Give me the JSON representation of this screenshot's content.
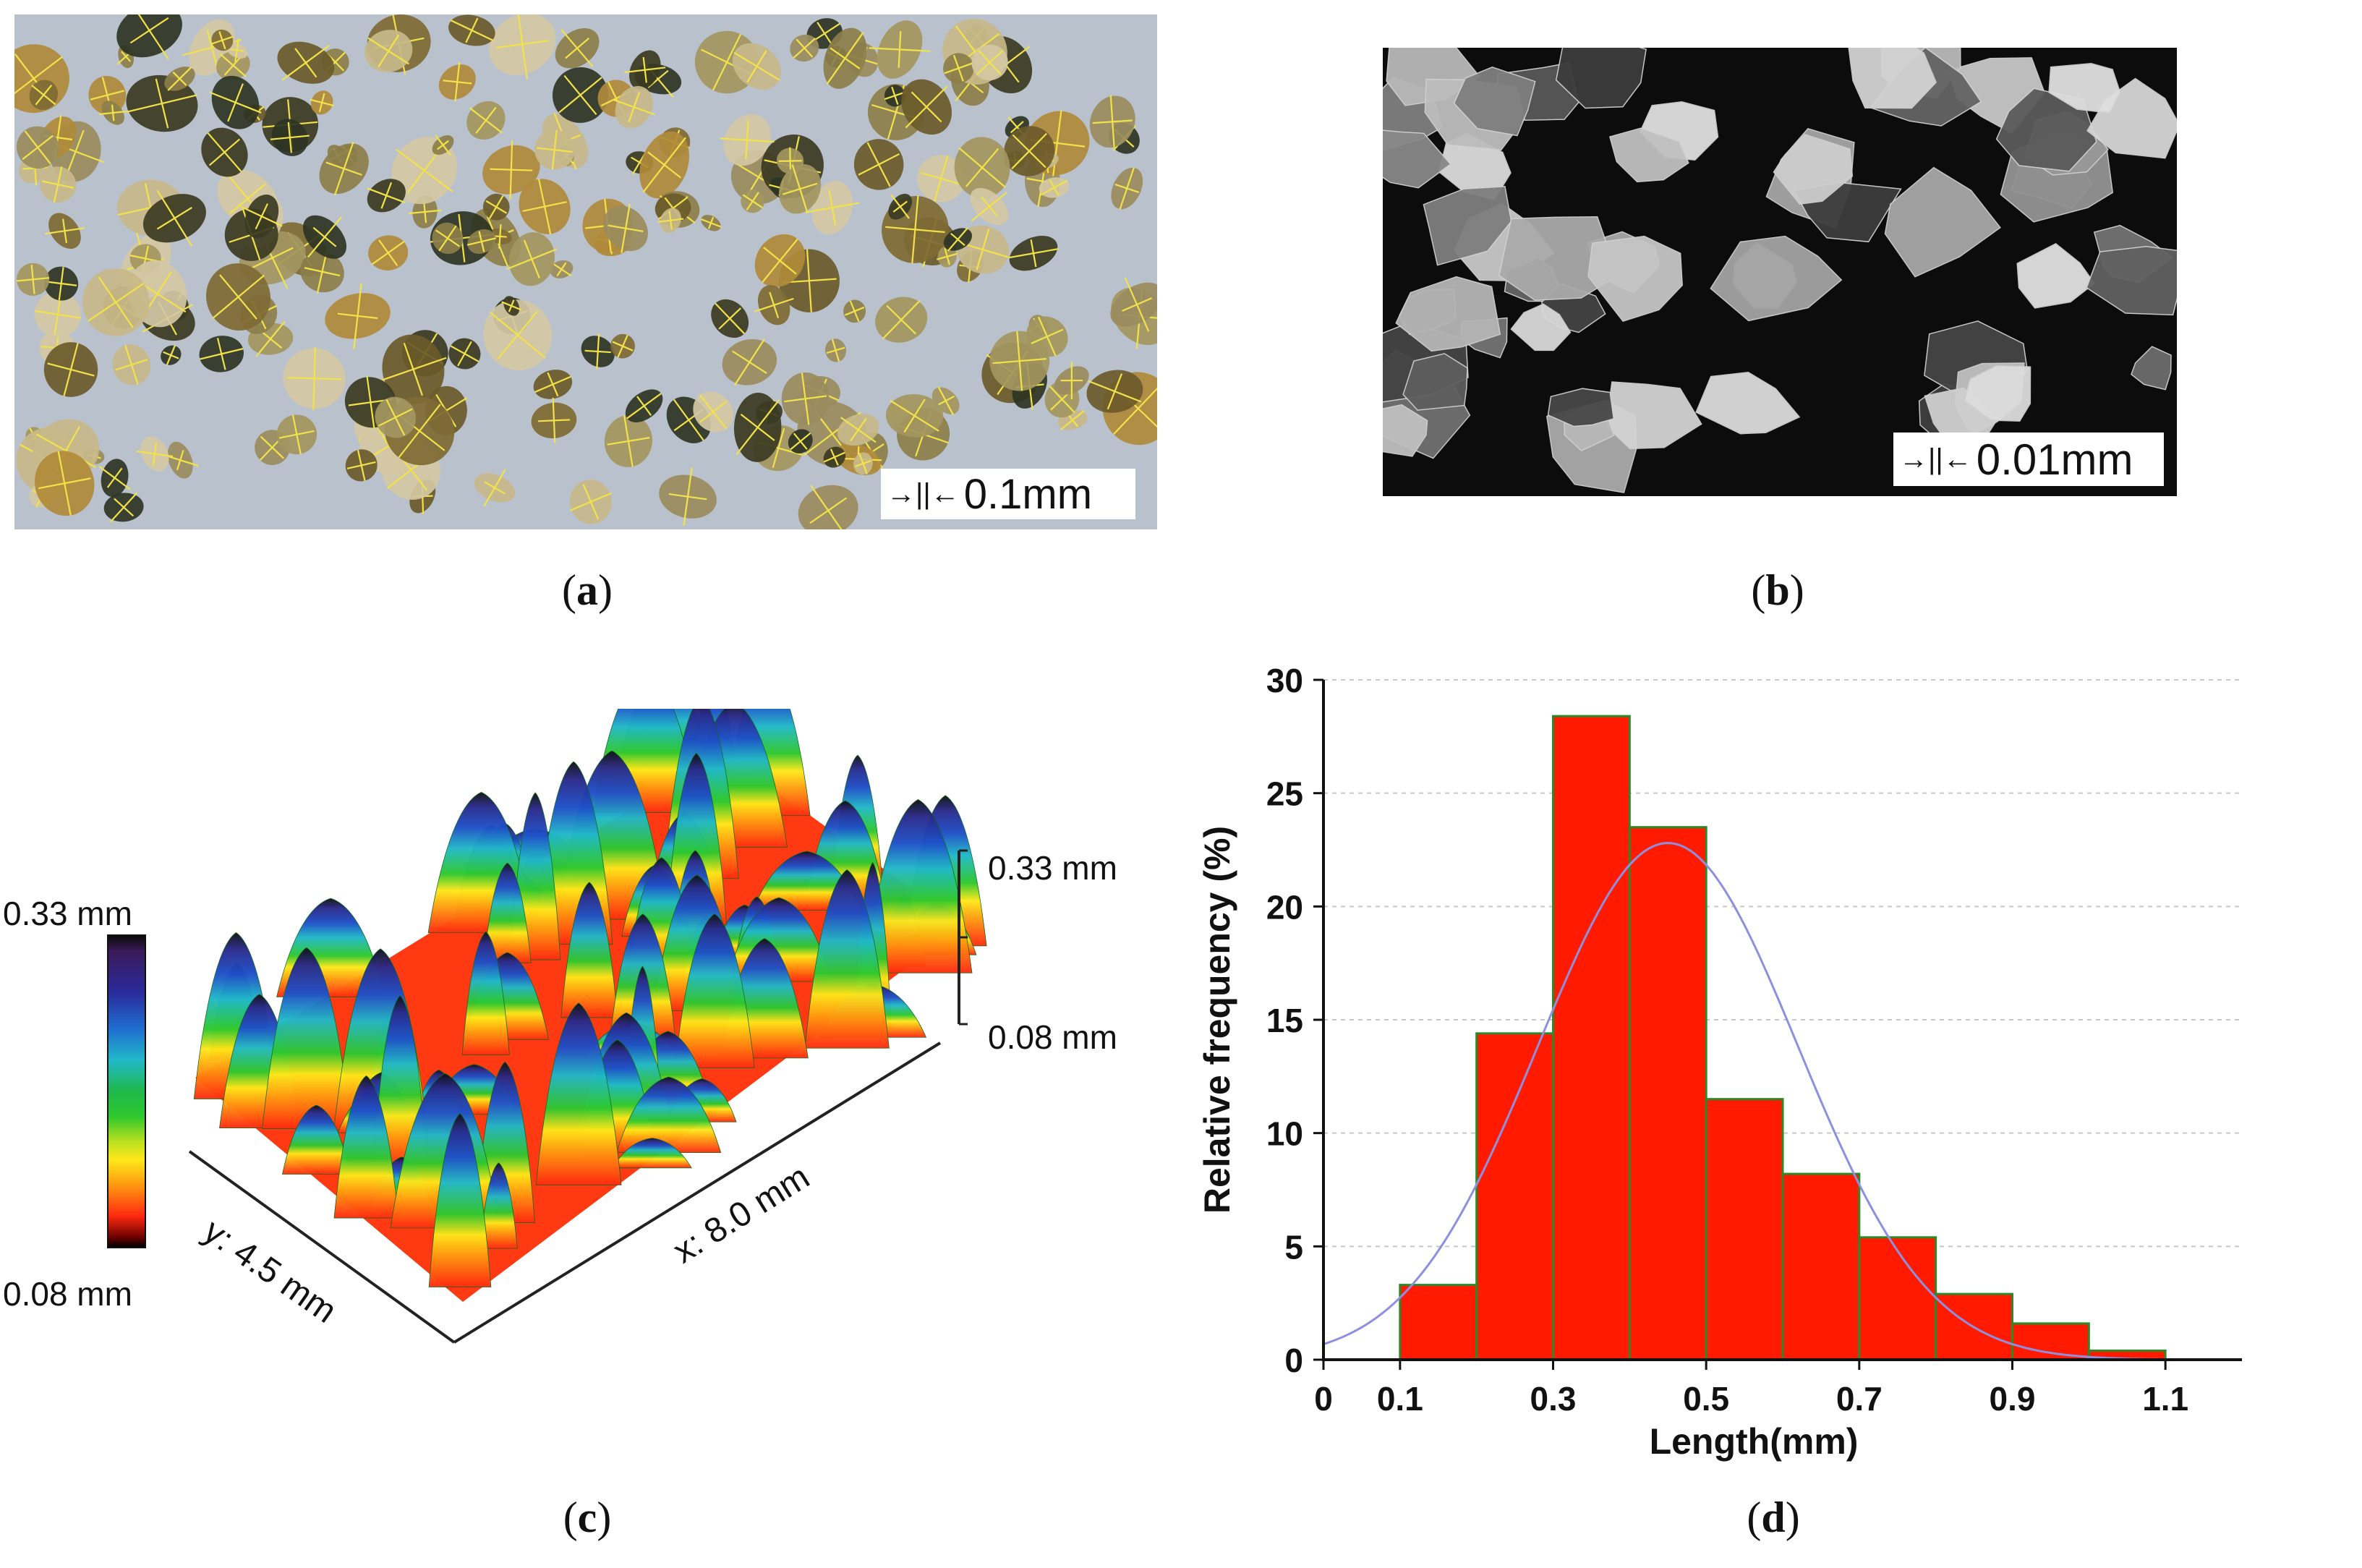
{
  "panels": {
    "a": {
      "caption_letter": "a",
      "scale_label": "0.1mm"
    },
    "b": {
      "caption_letter": "b",
      "scale_label": "0.01mm"
    },
    "c": {
      "caption_letter": "c",
      "colorbar_top": "0.33 mm",
      "colorbar_bottom": "0.08 mm",
      "zaxis_top": "0.33 mm",
      "zaxis_bottom": "0.08 mm",
      "x_axis_label": "x: 8.0 mm",
      "y_axis_label": "y: 4.5 mm"
    },
    "d": {
      "caption_letter": "d"
    }
  },
  "colors": {
    "bar_fill": "#ff1a00",
    "bar_edge": "#2a8a2a",
    "fit_curve": "#8f8fe0",
    "grid": "#c8c8c8"
  },
  "chart_data": {
    "type": "bar",
    "title": "",
    "xlabel": "Length(mm)",
    "ylabel": "Relative frequency (%)",
    "xlim": [
      0,
      1.2
    ],
    "ylim": [
      0,
      30
    ],
    "xticks": [
      "0",
      "0.1",
      "0.3",
      "0.5",
      "0.7",
      "0.9",
      "1.1"
    ],
    "xtick_values": [
      0,
      0.1,
      0.3,
      0.5,
      0.7,
      0.9,
      1.1
    ],
    "yticks": [
      "0",
      "5",
      "10",
      "15",
      "20",
      "25",
      "30"
    ],
    "ytick_values": [
      0,
      5,
      10,
      15,
      20,
      25,
      30
    ],
    "bin_width": 0.1,
    "bins": [
      {
        "center": 0.15,
        "value": 3.3
      },
      {
        "center": 0.25,
        "value": 14.4
      },
      {
        "center": 0.35,
        "value": 28.4
      },
      {
        "center": 0.45,
        "value": 23.5
      },
      {
        "center": 0.55,
        "value": 11.5
      },
      {
        "center": 0.65,
        "value": 8.2
      },
      {
        "center": 0.75,
        "value": 5.4
      },
      {
        "center": 0.85,
        "value": 2.9
      },
      {
        "center": 0.95,
        "value": 1.6
      },
      {
        "center": 1.05,
        "value": 0.4
      }
    ],
    "fit": {
      "type": "normal",
      "mean": 0.45,
      "sd": 0.17,
      "peak": 22.8
    }
  }
}
